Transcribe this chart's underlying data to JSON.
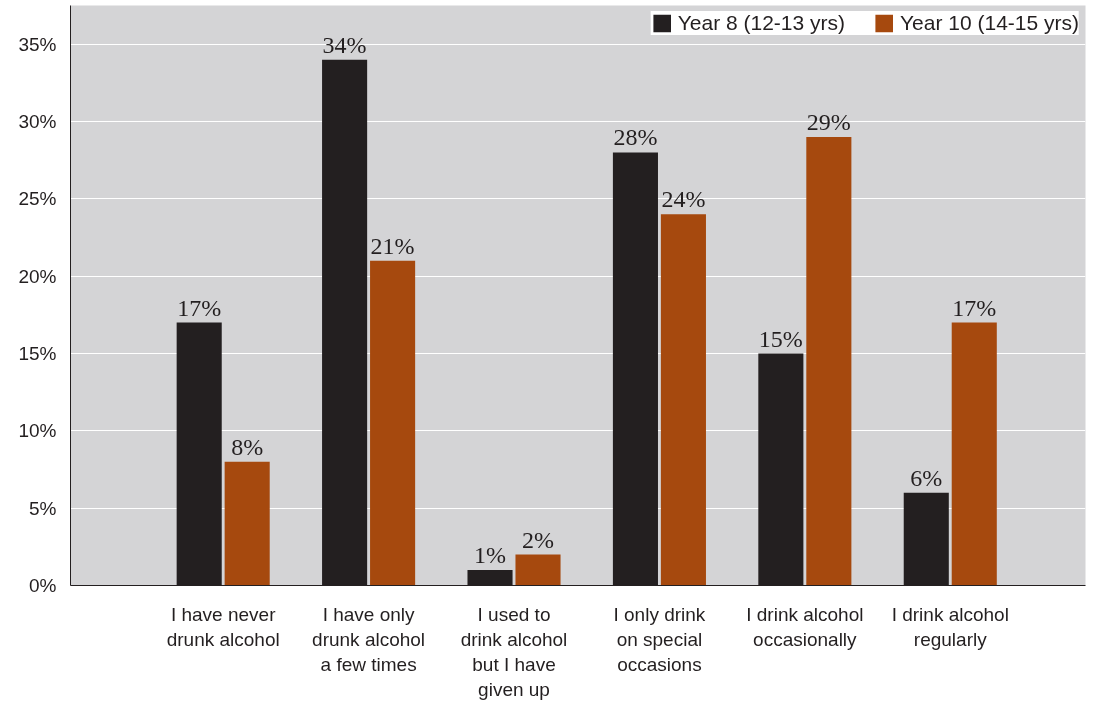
{
  "chart_data": {
    "type": "bar",
    "categories": [
      "I have never\ndrunk alcohol",
      "I have only\ndrunk alcohol\na few times",
      "I used to\ndrink alcohol\nbut I have\ngiven up",
      "I only drink\non special\noccasions",
      "I drink alcohol\noccasionally",
      "I drink alcohol\nregularly"
    ],
    "series": [
      {
        "name": "Year 8 (12-13 yrs)",
        "color": "#231f20",
        "values": [
          17,
          34,
          1,
          28,
          15,
          6
        ],
        "value_labels": [
          "17%",
          "34%",
          "1%",
          "28%",
          "15%",
          "6%"
        ]
      },
      {
        "name": "Year 10 (14-15 yrs)",
        "color": "#a6490e",
        "values": [
          8,
          21,
          2,
          24,
          29,
          17
        ],
        "value_labels": [
          "8%",
          "21%",
          "2%",
          "24%",
          "29%",
          "17%"
        ]
      }
    ],
    "ylim": [
      0,
      37.5
    ],
    "yticks": [
      {
        "value": 0,
        "label": "0%"
      },
      {
        "value": 5,
        "label": "5%"
      },
      {
        "value": 10,
        "label": "10%"
      },
      {
        "value": 15,
        "label": "15%"
      },
      {
        "value": 20,
        "label": "20%"
      },
      {
        "value": 25,
        "label": "25%"
      },
      {
        "value": 30,
        "label": "30%"
      },
      {
        "value": 35,
        "label": "35%"
      }
    ],
    "grid": "y",
    "legend": "top right"
  }
}
